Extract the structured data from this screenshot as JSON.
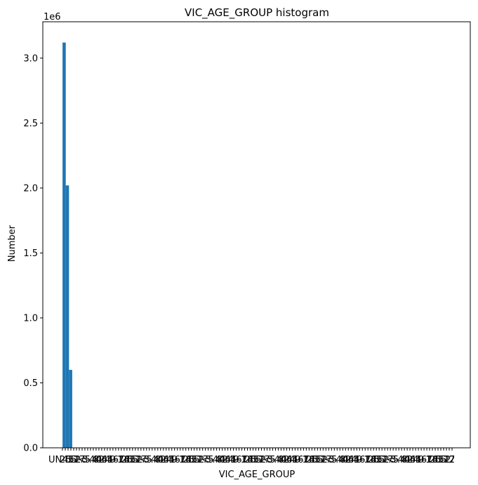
{
  "chart_data": {
    "type": "bar",
    "title": "VIC_AGE_GROUP histogram",
    "xlabel": "VIC_AGE_GROUP",
    "ylabel": "Number",
    "scale_label": "1e6",
    "ylim": [
      0,
      3.28
    ],
    "y_ticks": [
      "0.0",
      "0.5",
      "1.0",
      "1.5",
      "2.0",
      "2.5",
      "3.0"
    ],
    "y_tick_values": [
      0,
      0.5,
      1.0,
      1.5,
      2.0,
      2.5,
      3.0
    ],
    "first_x_tick": "UN",
    "tail_tick_label": "2",
    "x_tick_count": 140,
    "x_tick_labels_legible": false,
    "values_in_millions": [
      3.12,
      2.02,
      0.6
    ],
    "grid": false,
    "bar_color": "#1f77b4"
  }
}
